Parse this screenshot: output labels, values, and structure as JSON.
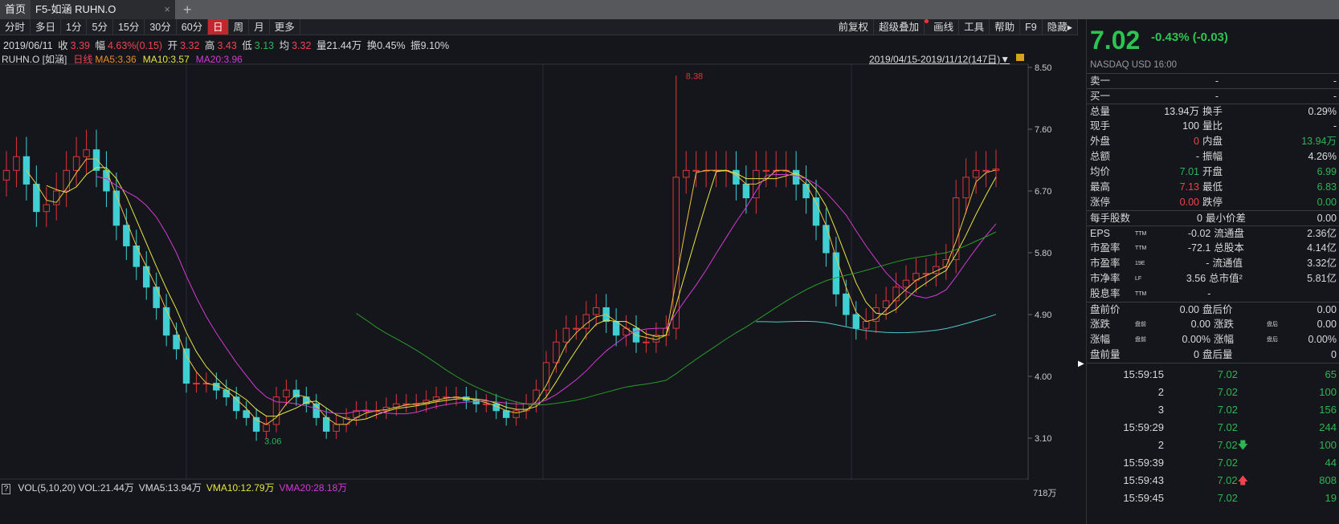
{
  "tabs": {
    "home": "首页",
    "active": "F5-如涵 RUHN.O",
    "close": "×",
    "add": "+"
  },
  "periods": [
    "分时",
    "多日",
    "1分",
    "5分",
    "15分",
    "30分",
    "60分",
    "日",
    "周",
    "月",
    "更多"
  ],
  "active_period": "日",
  "tools": [
    "前复权",
    "超级叠加",
    "画线",
    "工具",
    "帮助",
    "F9",
    "隐藏▸"
  ],
  "info": {
    "date": "2019/06/11",
    "close_label": "收",
    "close": "3.39",
    "amp_label": "幅",
    "amp": "4.63%(0.15)",
    "open_label": "开",
    "open": "3.32",
    "high_label": "高",
    "high": "3.43",
    "low_label": "低",
    "low": "3.13",
    "avg_label": "均",
    "avg": "3.32",
    "vol": "量21.44万",
    "turnover": "换0.45%",
    "swing": "振9.10%"
  },
  "legend": {
    "symbol": "RUHN.O [如涵]",
    "kline": "日线",
    "ma5": "MA5:3.36",
    "ma10": "MA10:3.57",
    "ma20": "MA20:3.96"
  },
  "range": "2019/04/15-2019/11/12(147日)▼",
  "volume_legend": {
    "help": "?",
    "title": "VOL(5,10,20)",
    "vol": "VOL:21.44万",
    "vma5": "VMA5:13.94万",
    "vma10": "VMA10:12.79万",
    "vma20": "VMA20:28.18万",
    "axis": "718万"
  },
  "colors": {
    "up": "#e0343c",
    "down": "#3fcfd2",
    "ma5": "#f0c040",
    "ma10": "#e6e642",
    "ma20": "#d43ad4",
    "green_line": "#2a9a2a",
    "cyan_line": "#4fc8cc"
  },
  "chart_data": {
    "type": "candlestick",
    "yticks": [
      "8.50",
      "7.60",
      "6.70",
      "5.80",
      "4.90",
      "4.00",
      "3.10"
    ],
    "ylim": [
      2.6,
      8.55
    ],
    "max_label": "8.38",
    "min_label": "3.06",
    "close": [
      7.0,
      7.2,
      6.8,
      6.4,
      6.5,
      6.7,
      7.0,
      7.2,
      7.3,
      7.0,
      6.7,
      6.2,
      5.9,
      5.6,
      5.3,
      5.0,
      4.6,
      4.4,
      3.9,
      3.9,
      3.9,
      3.8,
      3.7,
      3.5,
      3.4,
      3.2,
      3.3,
      3.7,
      3.8,
      3.7,
      3.6,
      3.4,
      3.2,
      3.3,
      3.4,
      3.5,
      3.5,
      3.5,
      3.55,
      3.6,
      3.6,
      3.6,
      3.65,
      3.7,
      3.7,
      3.7,
      3.65,
      3.6,
      3.6,
      3.5,
      3.4,
      3.5,
      3.6,
      3.8,
      4.2,
      4.5,
      4.7,
      4.7,
      4.9,
      5.0,
      4.8,
      4.6,
      4.7,
      4.5,
      4.5,
      4.6,
      4.7,
      6.9,
      7.0,
      7.0,
      7.0,
      7.0,
      7.0,
      6.8,
      6.6,
      7.0,
      7.0,
      7.0,
      7.0,
      6.8,
      6.6,
      6.2,
      5.8,
      5.2,
      4.9,
      4.7,
      4.8,
      5.0,
      5.1,
      5.3,
      5.4,
      5.5,
      5.5,
      5.6,
      5.7,
      6.6,
      6.9,
      7.0,
      7.0,
      7.02
    ]
  },
  "panel": {
    "price": "7.02",
    "change": "-0.43% (-0.03)",
    "market": "NASDAQ  USD  16:00",
    "book": [
      {
        "k": "卖一",
        "v": "-",
        "v2": "-"
      },
      {
        "k": "买一",
        "v": "-",
        "v2": "-"
      }
    ],
    "stats": [
      {
        "k": "总量",
        "v": "13.94万",
        "k2": "换手",
        "v2": "0.29%",
        "c": "w",
        "c2": "w"
      },
      {
        "k": "现手",
        "v": "100",
        "k2": "量比",
        "v2": "-",
        "c": "w",
        "c2": "w"
      },
      {
        "k": "外盘",
        "v": "0",
        "k2": "内盘",
        "v2": "13.94万",
        "c": "r",
        "c2": "g"
      },
      {
        "k": "总额",
        "v": "-",
        "k2": "振幅",
        "v2": "4.26%",
        "c": "w",
        "c2": "w"
      },
      {
        "k": "均价",
        "v": "7.01",
        "k2": "开盘",
        "v2": "6.99",
        "c": "g",
        "c2": "g"
      },
      {
        "k": "最高",
        "v": "7.13",
        "k2": "最低",
        "v2": "6.83",
        "c": "r",
        "c2": "g"
      },
      {
        "k": "涨停",
        "v": "0.00",
        "k2": "跌停",
        "v2": "0.00",
        "c": "r",
        "c2": "g"
      }
    ],
    "lot": {
      "k": "每手股数",
      "v": "0",
      "k2": "最小价差",
      "v2": "0.00"
    },
    "fund": [
      {
        "k": "EPS",
        "s": "TTM",
        "v": "-0.02",
        "k2": "流通盘",
        "v2": "2.36亿"
      },
      {
        "k": "市盈率",
        "s": "TTM",
        "v": "-72.1",
        "k2": "总股本",
        "v2": "4.14亿"
      },
      {
        "k": "市盈率",
        "s": "19E",
        "v": "-",
        "k2": "流通值",
        "v2": "3.32亿"
      },
      {
        "k": "市净率",
        "s": "LF",
        "v": "3.56",
        "k2": "总市值²",
        "v2": "5.81亿"
      },
      {
        "k": "股息率",
        "s": "TTM",
        "v": "-",
        "k2": "",
        "v2": ""
      }
    ],
    "ext": [
      {
        "k": "盘前价",
        "s": "",
        "v": "0.00",
        "k2": "盘后价",
        "s2": "",
        "v2": "0.00"
      },
      {
        "k": "涨跌",
        "s": "盘前",
        "v": "0.00",
        "k2": "涨跌",
        "s2": "盘后",
        "v2": "0.00"
      },
      {
        "k": "涨幅",
        "s": "盘前",
        "v": "0.00%",
        "k2": "涨幅",
        "s2": "盘后",
        "v2": "0.00%"
      },
      {
        "k": "盘前量",
        "s": "",
        "v": "0",
        "k2": "盘后量",
        "s2": "",
        "v2": "0"
      }
    ],
    "ticks": [
      {
        "t": "15:59:15",
        "p": "7.02",
        "v": "65",
        "a": ""
      },
      {
        "t": "2",
        "p": "7.02",
        "v": "100",
        "a": ""
      },
      {
        "t": "3",
        "p": "7.02",
        "v": "156",
        "a": ""
      },
      {
        "t": "15:59:29",
        "p": "7.02",
        "v": "244",
        "a": ""
      },
      {
        "t": "2",
        "p": "7.02",
        "v": "100",
        "a": "down"
      },
      {
        "t": "15:59:39",
        "p": "7.02",
        "v": "44",
        "a": ""
      },
      {
        "t": "15:59:43",
        "p": "7.02",
        "v": "808",
        "a": "up"
      },
      {
        "t": "15:59:45",
        "p": "7.02",
        "v": "19",
        "a": ""
      }
    ]
  }
}
